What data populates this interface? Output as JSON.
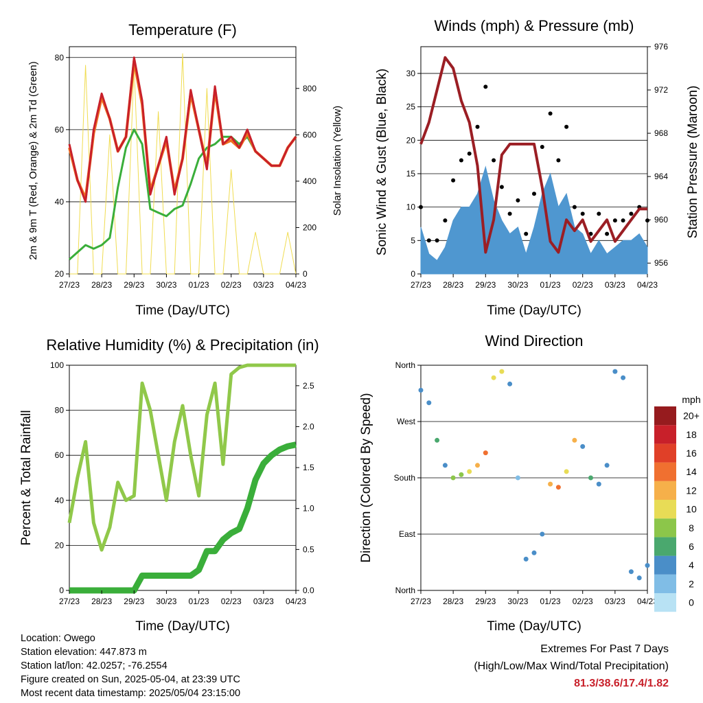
{
  "x_ticks": [
    "27/23",
    "28/23",
    "29/23",
    "30/23",
    "01/23",
    "02/23",
    "03/23",
    "04/23"
  ],
  "xlabel": "Time (Day/UTC)",
  "chart_data": [
    {
      "type": "line",
      "title": "Temperature (F)",
      "xlabel": "Time (Day/UTC)",
      "ylabel": "2m & 9m T (Red, Orange) & 2m Td (Green)",
      "ylabel_right": "Solar Insolation (Yellow)",
      "ylim": [
        20,
        83
      ],
      "ylim_right": [
        0,
        980
      ],
      "y_ticks": [
        "20",
        "40",
        "60",
        "80"
      ],
      "y_ticks_right": [
        "0",
        "200",
        "400",
        "600",
        "800"
      ],
      "x": [
        0,
        0.25,
        0.5,
        0.75,
        1,
        1.25,
        1.5,
        1.75,
        2,
        2.25,
        2.5,
        2.75,
        3,
        3.25,
        3.5,
        3.75,
        4,
        4.25,
        4.5,
        4.75,
        5,
        5.25,
        5.5,
        5.75,
        6,
        6.25,
        6.5,
        6.75,
        7
      ],
      "series": [
        {
          "name": "2m T",
          "color": "#c8202a",
          "values": [
            56,
            46,
            40,
            60,
            70,
            63,
            54,
            58,
            80,
            68,
            42,
            50,
            58,
            42,
            52,
            71,
            60,
            49,
            72,
            56,
            58,
            55,
            60,
            54,
            52,
            50,
            50,
            55,
            58
          ]
        },
        {
          "name": "9m T",
          "color": "#f07020",
          "values": [
            55,
            46,
            41,
            59,
            69,
            63,
            54,
            58,
            79,
            67,
            43,
            50,
            57,
            43,
            52,
            70,
            60,
            50,
            71,
            56,
            57,
            55,
            59,
            54,
            52,
            50,
            50,
            55,
            58
          ]
        },
        {
          "name": "2m Td",
          "color": "#3aae3a",
          "values": [
            24,
            26,
            28,
            27,
            28,
            30,
            44,
            55,
            60,
            56,
            38,
            37,
            36,
            38,
            39,
            45,
            52,
            55,
            56,
            58,
            58,
            56,
            58,
            54,
            52,
            50,
            50,
            55,
            58
          ]
        },
        {
          "name": "Solar Insolation",
          "color": "#f0dc50",
          "axis": "right",
          "values": [
            0,
            0,
            900,
            0,
            0,
            600,
            0,
            0,
            900,
            0,
            0,
            700,
            0,
            0,
            950,
            0,
            0,
            800,
            0,
            0,
            450,
            0,
            0,
            180,
            0,
            0,
            0,
            180,
            0
          ]
        }
      ]
    },
    {
      "type": "line",
      "title": "Winds (mph) & Pressure (mb)",
      "xlabel": "Time (Day/UTC)",
      "ylabel": "Sonic Wind & Gust (Blue, Black)",
      "ylabel_right": "Station Pressure (Maroon)",
      "ylim": [
        0,
        34
      ],
      "ylim_right": [
        955,
        976
      ],
      "y_ticks": [
        "0",
        "5",
        "10",
        "15",
        "20",
        "25",
        "30"
      ],
      "y_ticks_right": [
        "956",
        "960",
        "964",
        "968",
        "972",
        "976"
      ],
      "x": [
        0,
        0.25,
        0.5,
        0.75,
        1,
        1.25,
        1.5,
        1.75,
        2,
        2.25,
        2.5,
        2.75,
        3,
        3.25,
        3.5,
        3.75,
        4,
        4.25,
        4.5,
        4.75,
        5,
        5.25,
        5.5,
        5.75,
        6,
        6.25,
        6.5,
        6.75,
        7
      ],
      "series": [
        {
          "name": "Sonic Wind",
          "color": "#4f97d0",
          "values": [
            7,
            3,
            2,
            4,
            8,
            10,
            10,
            12,
            16,
            11,
            8,
            6,
            7,
            3,
            7,
            12,
            15,
            10,
            12,
            7,
            6,
            3,
            5,
            3,
            4,
            5,
            5,
            6,
            4
          ]
        },
        {
          "name": "Gust",
          "color": "#000000",
          "values": [
            10,
            5,
            5,
            8,
            14,
            17,
            18,
            22,
            28,
            17,
            13,
            9,
            11,
            6,
            12,
            19,
            24,
            17,
            22,
            10,
            9,
            6,
            9,
            6,
            8,
            8,
            9,
            10,
            8
          ]
        },
        {
          "name": "Station Pressure",
          "color": "#9b1e24",
          "axis": "right",
          "values": [
            967,
            969,
            972,
            975,
            974,
            971,
            969,
            965,
            957,
            960,
            966,
            967,
            967,
            967,
            967,
            963,
            958,
            957,
            960,
            959,
            960,
            958,
            959,
            960,
            958,
            959,
            960,
            961,
            961
          ]
        }
      ]
    },
    {
      "type": "line",
      "title": "Relative Humidity (%) & Precipitation (in)",
      "xlabel": "Time (Day/UTC)",
      "ylabel": "Percent & Total Rainfall",
      "ylim": [
        0,
        100
      ],
      "ylim_right": [
        0,
        2.75
      ],
      "y_ticks": [
        "0",
        "20",
        "40",
        "60",
        "80",
        "100"
      ],
      "y_ticks_right": [
        "0.0",
        "0.5",
        "1.0",
        "1.5",
        "2.0",
        "2.5"
      ],
      "x": [
        0,
        0.25,
        0.5,
        0.75,
        1,
        1.25,
        1.5,
        1.75,
        2,
        2.25,
        2.5,
        2.75,
        3,
        3.25,
        3.5,
        3.75,
        4,
        4.25,
        4.5,
        4.75,
        5,
        5.25,
        5.5,
        5.75,
        6,
        6.25,
        6.5,
        6.75,
        7
      ],
      "series": [
        {
          "name": "Relative Humidity",
          "color": "#90c84a",
          "values": [
            30,
            50,
            66,
            30,
            18,
            28,
            48,
            40,
            42,
            92,
            80,
            60,
            40,
            66,
            82,
            60,
            42,
            78,
            92,
            56,
            96,
            99,
            100,
            100,
            100,
            100,
            100,
            100,
            100
          ]
        },
        {
          "name": "Total Precipitation",
          "color": "#3aae3a",
          "axis": "right",
          "values": [
            0,
            0,
            0,
            0,
            0,
            0,
            0,
            0,
            0,
            0.18,
            0.18,
            0.18,
            0.18,
            0.18,
            0.18,
            0.18,
            0.25,
            0.48,
            0.48,
            0.62,
            0.7,
            0.75,
            1.0,
            1.35,
            1.55,
            1.65,
            1.72,
            1.76,
            1.78
          ]
        }
      ]
    },
    {
      "type": "scatter",
      "title": "Wind Direction",
      "xlabel": "Time (Day/UTC)",
      "ylabel": "Direction (Colored By Speed)",
      "y_ticks": [
        "North",
        "East",
        "South",
        "West",
        "North"
      ],
      "colorbar_title": "mph",
      "colorbar_labels": [
        "0",
        "2",
        "4",
        "6",
        "8",
        "10",
        "12",
        "14",
        "16",
        "18",
        "20+"
      ],
      "colorbar_colors": [
        "#b8e2f4",
        "#80bde6",
        "#4a8ec8",
        "#4aa86e",
        "#8cc64a",
        "#e8dc56",
        "#f6b04a",
        "#f07030",
        "#e04028",
        "#c8202a",
        "#961b1e"
      ],
      "x": [
        0,
        0.25,
        0.5,
        0.75,
        1,
        1.25,
        1.5,
        1.75,
        2,
        2.25,
        2.5,
        2.75,
        3,
        3.25,
        3.5,
        3.75,
        4,
        4.25,
        4.5,
        4.75,
        5,
        5.25,
        5.5,
        5.75,
        6,
        6.25,
        6.5,
        6.75,
        7
      ],
      "direction_deg": [
        320,
        300,
        240,
        200,
        180,
        185,
        190,
        200,
        220,
        340,
        350,
        330,
        180,
        50,
        60,
        90,
        170,
        165,
        190,
        240,
        230,
        180,
        170,
        200,
        350,
        340,
        30,
        20,
        40
      ],
      "speed_mph": [
        3,
        3,
        5,
        4,
        7,
        8,
        9,
        12,
        14,
        10,
        9,
        3,
        2,
        4,
        4,
        3,
        12,
        13,
        10,
        12,
        4,
        5,
        3,
        3,
        4,
        3,
        3,
        4,
        4
      ]
    }
  ],
  "footer": {
    "location": "Location: Owego",
    "elevation": "Station elevation: 447.873 m",
    "latlon": "Station lat/lon: 42.0257; -76.2554",
    "created": "Figure created on Sun, 2025-05-04, at 23:39 UTC",
    "timestamp": "Most recent data timestamp: 2025/05/04 23:15:00"
  },
  "extremes": {
    "line1": "Extremes For Past 7 Days",
    "line2": "(High/Low/Max Wind/Total Precipitation)",
    "values": "81.3/38.6/17.4/1.82"
  }
}
